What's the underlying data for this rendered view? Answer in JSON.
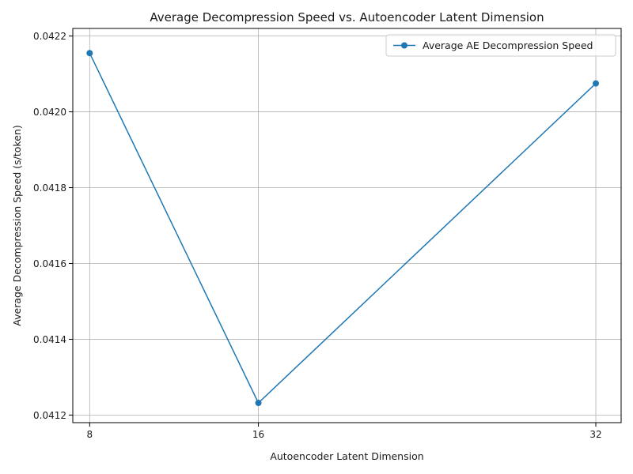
{
  "chart_data": {
    "type": "line",
    "title": "Average Decompression Speed vs. Autoencoder Latent Dimension",
    "xlabel": "Autoencoder Latent Dimension",
    "ylabel": "Average Decompression Speed (s/token)",
    "x_ticks": [
      "8",
      "16",
      "32"
    ],
    "y_ticks": [
      "0.0412",
      "0.0414",
      "0.0416",
      "0.0418",
      "0.0420",
      "0.0422"
    ],
    "xlim": [
      7.2,
      33.2
    ],
    "ylim": [
      0.04118,
      0.04222
    ],
    "grid": true,
    "legend_position": "top-right",
    "series": [
      {
        "name": "Average AE Decompression Speed",
        "color": "#1f77b4",
        "marker": "circle",
        "x": [
          8,
          16,
          32
        ],
        "y": [
          0.042155,
          0.041232,
          0.042075
        ]
      }
    ]
  }
}
